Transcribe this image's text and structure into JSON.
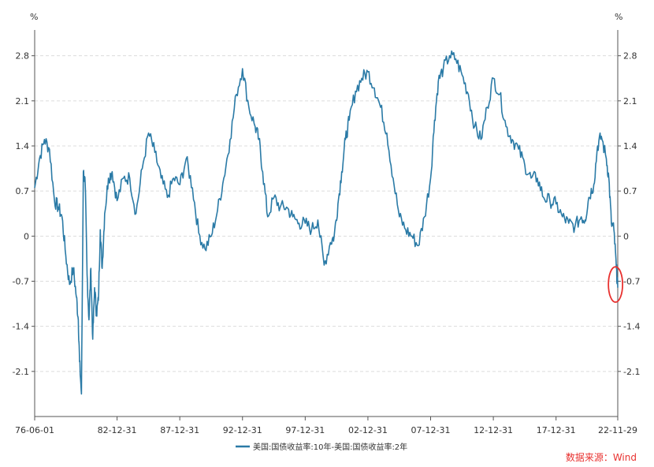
{
  "chart_data": {
    "type": "line",
    "title": "",
    "unit_left": "%",
    "unit_right": "%",
    "ylim": [
      -2.8,
      3.2
    ],
    "y_ticks": [
      2.8,
      2.1,
      1.4,
      0.7,
      0,
      -0.7,
      -1.4,
      -2.1
    ],
    "y_tick_labels": [
      "2.8",
      "2.1",
      "1.4",
      "0.7",
      "0",
      "-0.7",
      "-1.4",
      "-2.1"
    ],
    "x_range": [
      1976.42,
      2022.91
    ],
    "x_ticks": [
      {
        "label": "76-06-01",
        "x": 1976.42
      },
      {
        "label": "82-12-31",
        "x": 1982.99
      },
      {
        "label": "87-12-31",
        "x": 1987.99
      },
      {
        "label": "92-12-31",
        "x": 1992.99
      },
      {
        "label": "97-12-31",
        "x": 1997.99
      },
      {
        "label": "02-12-31",
        "x": 2002.99
      },
      {
        "label": "07-12-31",
        "x": 2007.99
      },
      {
        "label": "12-12-31",
        "x": 2012.99
      },
      {
        "label": "17-12-31",
        "x": 2017.99
      },
      {
        "label": "22-11-29",
        "x": 2022.91
      }
    ],
    "grid": true,
    "legend_position": "bottom",
    "series": [
      {
        "name": "美国:国债收益率:10年-美国:国债收益率:2年",
        "color": "#2a7aa6",
        "x": [
          1976.42,
          1976.8,
          1977.2,
          1977.6,
          1978.0,
          1978.3,
          1978.6,
          1978.9,
          1979.2,
          1979.5,
          1979.75,
          1979.9,
          1980.0,
          1980.15,
          1980.3,
          1980.45,
          1980.6,
          1980.75,
          1980.9,
          1981.05,
          1981.2,
          1981.35,
          1981.5,
          1981.65,
          1981.8,
          1982.0,
          1982.3,
          1982.6,
          1982.99,
          1983.5,
          1984.0,
          1984.5,
          1985.0,
          1985.5,
          1986.0,
          1986.5,
          1987.0,
          1987.5,
          1988.0,
          1988.5,
          1989.0,
          1989.5,
          1990.0,
          1990.5,
          1991.0,
          1991.5,
          1992.0,
          1992.5,
          1992.99,
          1993.5,
          1994.0,
          1994.3,
          1994.6,
          1995.0,
          1995.5,
          1996.0,
          1996.5,
          1997.0,
          1997.5,
          1997.99,
          1998.5,
          1999.0,
          1999.5,
          2000.0,
          2000.3,
          2000.6,
          2000.9,
          2001.2,
          2001.5,
          2002.0,
          2002.5,
          2002.99,
          2003.5,
          2004.0,
          2004.5,
          2005.0,
          2005.5,
          2006.0,
          2006.5,
          2007.0,
          2007.5,
          2007.99,
          2008.3,
          2008.6,
          2009.0,
          2009.5,
          2010.0,
          2010.5,
          2011.0,
          2011.5,
          2012.0,
          2012.5,
          2012.99,
          2013.5,
          2014.0,
          2014.5,
          2015.0,
          2015.5,
          2016.0,
          2016.5,
          2017.0,
          2017.5,
          2017.99,
          2018.5,
          2019.0,
          2019.5,
          2020.0,
          2020.3,
          2020.6,
          2021.0,
          2021.3,
          2021.6,
          2022.0,
          2022.2,
          2022.4,
          2022.6,
          2022.8,
          2022.91
        ],
        "values": [
          0.75,
          1.2,
          1.5,
          1.35,
          0.55,
          0.45,
          0.3,
          -0.3,
          -0.75,
          -0.5,
          -0.95,
          -1.3,
          -1.95,
          -2.45,
          1.0,
          0.8,
          -0.6,
          -1.3,
          -0.5,
          -1.6,
          -0.8,
          -1.2,
          -1.0,
          0.1,
          -0.5,
          0.35,
          0.9,
          1.0,
          0.55,
          0.9,
          0.9,
          0.35,
          1.05,
          1.6,
          1.3,
          0.9,
          0.6,
          0.9,
          0.8,
          1.2,
          0.75,
          0.05,
          -0.2,
          0.0,
          0.4,
          0.9,
          1.5,
          2.2,
          2.6,
          2.0,
          1.7,
          1.5,
          1.0,
          0.3,
          0.6,
          0.45,
          0.45,
          0.3,
          0.2,
          0.2,
          0.1,
          0.25,
          -0.45,
          -0.1,
          0.0,
          0.5,
          1.0,
          1.5,
          1.8,
          2.25,
          2.45,
          2.55,
          2.3,
          2.0,
          1.6,
          0.9,
          0.3,
          0.1,
          0.0,
          -0.15,
          0.3,
          0.9,
          1.8,
          2.4,
          2.6,
          2.8,
          2.75,
          2.5,
          2.2,
          1.7,
          1.5,
          2.0,
          2.45,
          2.2,
          1.7,
          1.5,
          1.35,
          1.1,
          0.9,
          0.9,
          0.6,
          0.55,
          0.5,
          0.3,
          0.2,
          0.15,
          0.3,
          0.25,
          0.6,
          0.8,
          1.4,
          1.55,
          1.2,
          0.9,
          0.2,
          0.1,
          -0.5,
          -0.8
        ]
      }
    ],
    "annotation": {
      "type": "circle",
      "color": "#e8312f",
      "x_range": [
        2022.55,
        2022.91
      ],
      "y_range": [
        -1.0,
        -0.5
      ]
    },
    "source": "数据来源：Wind"
  }
}
